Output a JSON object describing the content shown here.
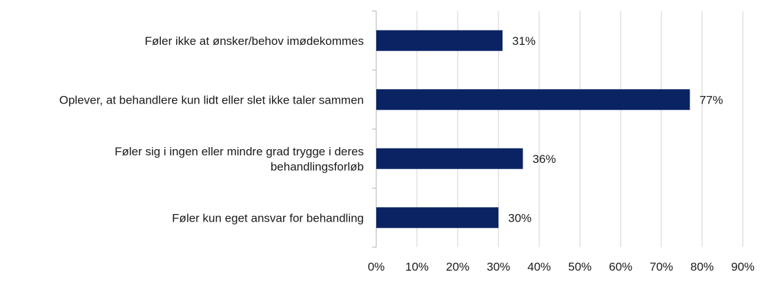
{
  "chart_data": {
    "type": "bar",
    "orientation": "horizontal",
    "title": "",
    "xlabel": "",
    "ylabel": "",
    "categories": [
      [
        "Føler ikke at ønsker/behov imødekommes"
      ],
      [
        "Oplever, at behandlere kun lidt eller slet ikke taler sammen"
      ],
      [
        "Føler sig i ingen eller mindre grad trygge i deres",
        "behandlingsforløb"
      ],
      [
        "Føler kun eget ansvar for behandling"
      ]
    ],
    "values": [
      31,
      77,
      36,
      30
    ],
    "data_labels": [
      "31%",
      "77%",
      "36%",
      "30%"
    ],
    "xlim": [
      0,
      90
    ],
    "x_ticks": [
      0,
      10,
      20,
      30,
      40,
      50,
      60,
      70,
      80,
      90
    ],
    "x_tick_labels": [
      "0%",
      "10%",
      "20%",
      "30%",
      "40%",
      "50%",
      "60%",
      "70%",
      "80%",
      "90%"
    ],
    "grid": "vertical",
    "legend": "none",
    "colors": {
      "bar": "#0a2463",
      "grid": "#d9d9d9",
      "axis": "#bfbfbf",
      "text": "#1a1a1a"
    }
  }
}
